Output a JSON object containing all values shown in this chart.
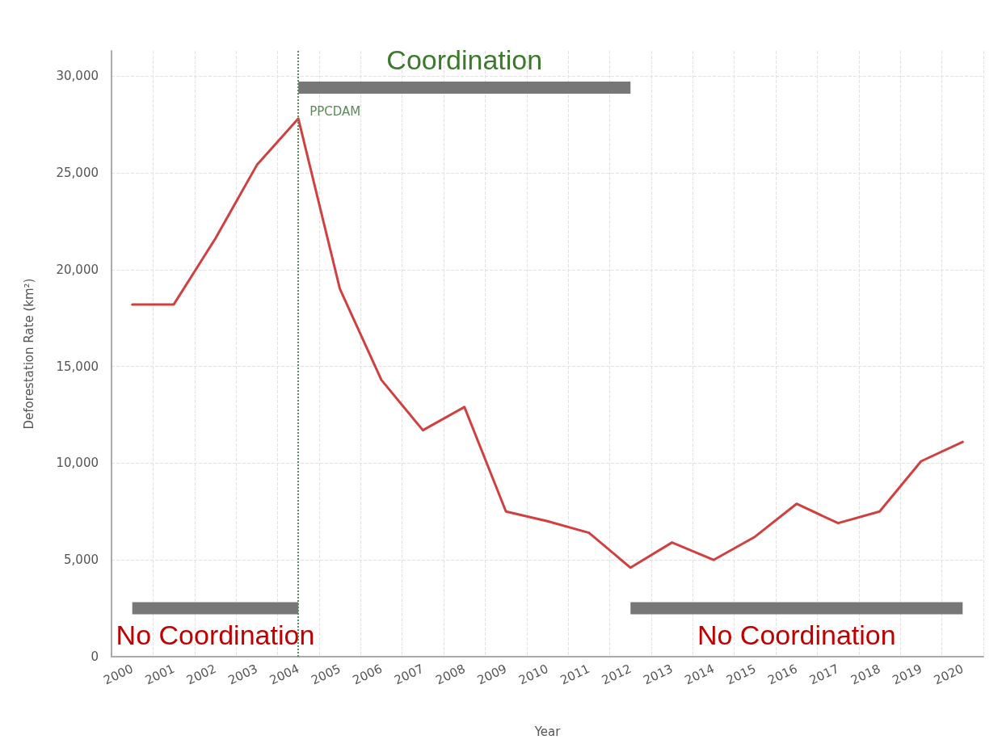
{
  "chart_data": {
    "type": "line",
    "xlabel": "Year",
    "ylabel": "Deforestation Rate (km²)",
    "categories": [
      "2000",
      "2001",
      "2002",
      "2003",
      "2004",
      "2005",
      "2006",
      "2007",
      "2008",
      "2009",
      "2010",
      "2011",
      "2012",
      "2013",
      "2014",
      "2015",
      "2016",
      "2017",
      "2018",
      "2019",
      "2020"
    ],
    "series": [
      {
        "color": "#d04040",
        "values": [
          18200,
          18200,
          21600,
          25400,
          27800,
          19000,
          14300,
          11700,
          12900,
          7500,
          7000,
          6400,
          4600,
          5900,
          5000,
          6200,
          7900,
          6900,
          7500,
          10100,
          11100
        ]
      },
      {
        "color": "#777777",
        "values": [
          2500,
          2500,
          2500,
          2500,
          2500,
          null,
          null,
          null,
          null,
          null,
          null,
          null,
          null,
          null,
          null,
          null,
          null,
          null,
          null,
          null,
          null
        ]
      },
      {
        "color": "#777777",
        "values": [
          null,
          null,
          null,
          null,
          29400,
          29400,
          29400,
          29400,
          29400,
          29400,
          29400,
          29400,
          29400,
          null,
          null,
          null,
          null,
          null,
          null,
          null,
          null
        ]
      },
      {
        "color": "#777777",
        "values": [
          null,
          null,
          null,
          null,
          null,
          null,
          null,
          null,
          null,
          null,
          null,
          null,
          2500,
          2500,
          2500,
          2500,
          2500,
          2500,
          2500,
          2500,
          2500
        ]
      }
    ],
    "ylim": [
      0,
      31300
    ],
    "yticks": [
      0,
      {
        "value": 5000,
        "label": "5,000"
      },
      {
        "value": 10000,
        "label": "10,000"
      },
      {
        "value": 15000,
        "label": "15,000"
      },
      {
        "value": 20000,
        "label": "20,000"
      },
      {
        "value": 25000,
        "label": "25,000"
      },
      {
        "value": 30000,
        "label": "30,000"
      }
    ],
    "grid": true,
    "marker": "none",
    "line_style": "solid",
    "ref_lines": [
      {
        "axis": "x",
        "value": "2004",
        "label": "PPCDAM",
        "color": "#5a8a5a",
        "line_style": "dotted"
      }
    ],
    "annotations": [
      {
        "text": "No Coordination",
        "x": "2002",
        "y": 2500
      },
      {
        "text": "Coordination",
        "x": "2008",
        "y": 29400
      },
      {
        "text": "No Coordination",
        "x": "2016",
        "y": 2500
      }
    ]
  }
}
